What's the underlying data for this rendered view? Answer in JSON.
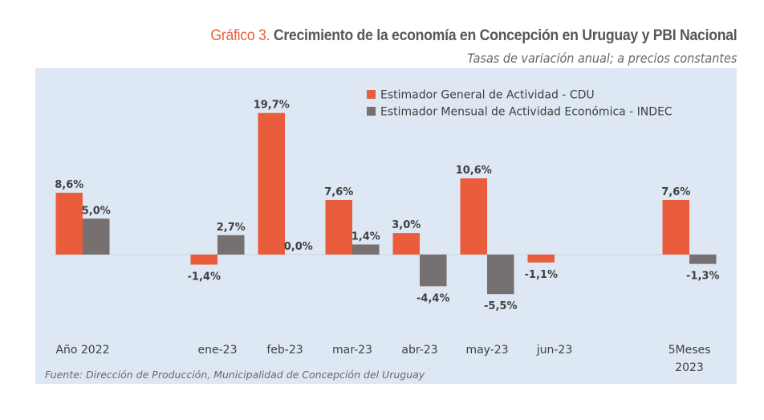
{
  "header": {
    "title_number": "Gráfico 3.",
    "title_text": "Crecimiento de la economía en Concepción en Uruguay y PBI Nacional",
    "subtitle": "Tasas de variación anual; a precios constantes"
  },
  "colors": {
    "cdu": "#e95d3c",
    "indec": "#767070",
    "panel_bg": "#dde8f4",
    "title_accent": "#e8603c"
  },
  "chart_data": {
    "type": "bar",
    "title": "Gráfico 3. Crecimiento de la economía en Concepción en Uruguay y PBI Nacional",
    "subtitle": "Tasas de variación anual; a precios constantes",
    "xlabel": "",
    "ylabel": "",
    "categories": [
      "Año 2022",
      "",
      "ene-23",
      "feb-23",
      "mar-23",
      "abr-23",
      "may-23",
      "jun-23",
      "",
      "5Meses 2023"
    ],
    "category_lines": [
      [
        "Año 2022"
      ],
      [],
      [
        "ene-23"
      ],
      [
        "feb-23"
      ],
      [
        "mar-23"
      ],
      [
        "abr-23"
      ],
      [
        "may-23"
      ],
      [
        "jun-23"
      ],
      [],
      [
        "5Meses",
        "2023"
      ]
    ],
    "series": [
      {
        "name": "Estimador General de Actividad - CDU",
        "color": "#e95d3c",
        "values": [
          8.6,
          null,
          -1.4,
          19.7,
          7.6,
          3.0,
          10.6,
          -1.1,
          null,
          7.6
        ],
        "labels": [
          "8,6%",
          "",
          "-1,4%",
          "19,7%",
          "7,6%",
          "3,0%",
          "10,6%",
          "-1,1%",
          "",
          "7,6%"
        ]
      },
      {
        "name": "Estimador Mensual de Actividad Económica - INDEC",
        "color": "#767070",
        "values": [
          5.0,
          null,
          2.7,
          0.0,
          1.4,
          -4.4,
          -5.5,
          null,
          null,
          -1.3
        ],
        "labels": [
          "5,0%",
          "",
          "2,7%",
          "0,0%",
          "1,4%",
          "-4,4%",
          "-5,5%",
          "",
          "",
          "-1,3%"
        ]
      }
    ],
    "ylim": [
      -9,
      21
    ],
    "grid": false,
    "legend": "top-right",
    "source": "Fuente: Dirección de Producción, Municipalidad de Concepción del Uruguay"
  }
}
